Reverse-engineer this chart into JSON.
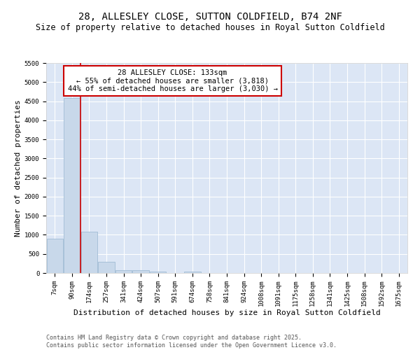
{
  "title": "28, ALLESLEY CLOSE, SUTTON COLDFIELD, B74 2NF",
  "subtitle": "Size of property relative to detached houses in Royal Sutton Coldfield",
  "xlabel": "Distribution of detached houses by size in Royal Sutton Coldfield",
  "ylabel": "Number of detached properties",
  "bar_values": [
    900,
    4580,
    1090,
    290,
    75,
    65,
    35,
    0,
    35,
    0,
    0,
    0,
    0,
    0,
    0,
    0,
    0,
    0,
    0,
    0,
    0
  ],
  "bin_labels": [
    "7sqm",
    "90sqm",
    "174sqm",
    "257sqm",
    "341sqm",
    "424sqm",
    "507sqm",
    "591sqm",
    "674sqm",
    "758sqm",
    "841sqm",
    "924sqm",
    "1008sqm",
    "1091sqm",
    "1175sqm",
    "1258sqm",
    "1341sqm",
    "1425sqm",
    "1508sqm",
    "1592sqm",
    "1675sqm"
  ],
  "bar_color": "#c8d8ea",
  "bar_edge_color": "#a0bcd4",
  "vline_color": "#cc0000",
  "annotation_text": "28 ALLESLEY CLOSE: 133sqm\n← 55% of detached houses are smaller (3,818)\n44% of semi-detached houses are larger (3,030) →",
  "annotation_box_color": "#ffffff",
  "annotation_box_edge_color": "#cc0000",
  "ylim": [
    0,
    5500
  ],
  "yticks": [
    0,
    500,
    1000,
    1500,
    2000,
    2500,
    3000,
    3500,
    4000,
    4500,
    5000,
    5500
  ],
  "bg_color": "#dce6f5",
  "grid_color": "#ffffff",
  "footer_text": "Contains HM Land Registry data © Crown copyright and database right 2025.\nContains public sector information licensed under the Open Government Licence v3.0.",
  "title_fontsize": 10,
  "subtitle_fontsize": 8.5,
  "tick_fontsize": 6.5,
  "label_fontsize": 8,
  "footer_fontsize": 6,
  "annot_fontsize": 7.5
}
